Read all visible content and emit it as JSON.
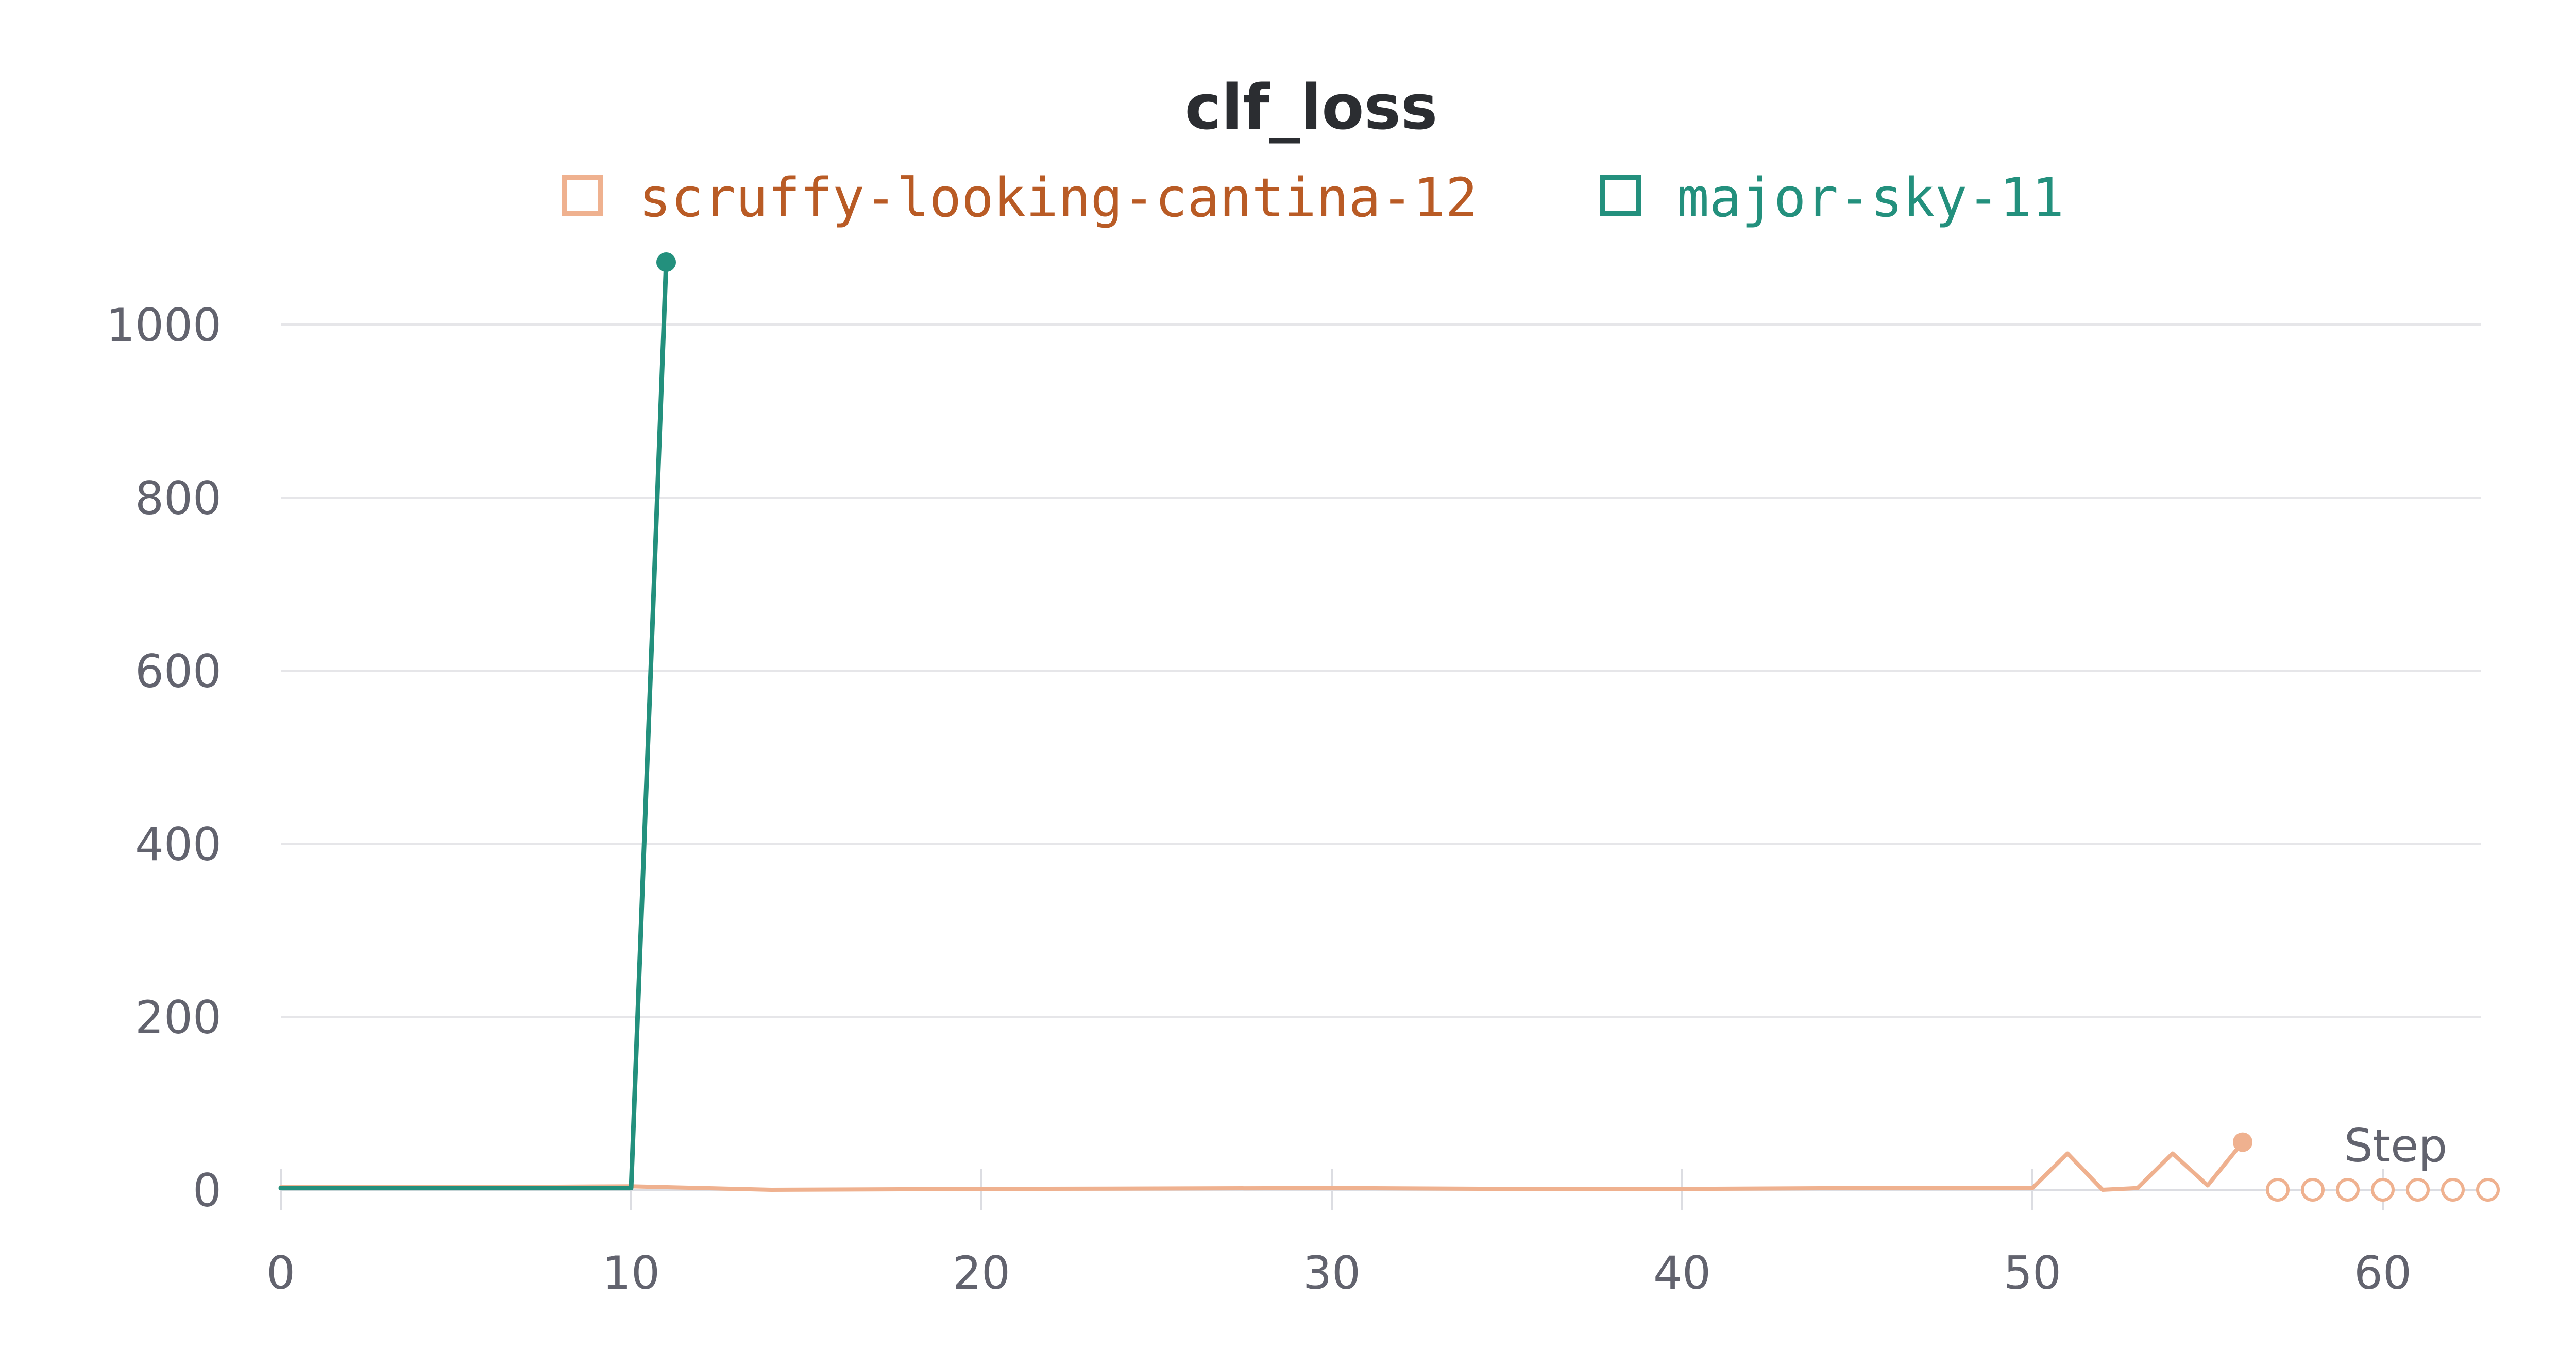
{
  "chart_data": {
    "type": "line",
    "title": "clf_loss",
    "xlabel": "Step",
    "ylabel": "",
    "xlim": [
      0,
      63
    ],
    "ylim": [
      0,
      1100
    ],
    "x_ticks": [
      0,
      10,
      20,
      30,
      40,
      50,
      60
    ],
    "y_ticks": [
      0,
      200,
      400,
      600,
      800,
      1000
    ],
    "grid": true,
    "legend_position": "top",
    "series": [
      {
        "name": "scruffy-looking-cantina-12",
        "color": "#efb18f",
        "text_color": "#b95b25",
        "marker_end": "filled",
        "hollow_x": [
          57,
          58,
          59,
          60,
          61,
          62,
          63
        ],
        "hollow_y": [
          0,
          0,
          0,
          0,
          0,
          0,
          0
        ],
        "x": [
          0,
          5,
          10,
          14,
          20,
          30,
          35,
          40,
          45,
          50,
          51,
          52,
          53,
          54,
          55,
          56
        ],
        "y": [
          3,
          3,
          4,
          0,
          1,
          2,
          1,
          1,
          2,
          2,
          42,
          0,
          2,
          42,
          5,
          55
        ]
      },
      {
        "name": "major-sky-11",
        "color": "#23907d",
        "text_color": "#23907d",
        "marker_end": "filled",
        "x": [
          0,
          5,
          10,
          11
        ],
        "y": [
          2,
          2,
          2,
          1072
        ]
      }
    ]
  }
}
